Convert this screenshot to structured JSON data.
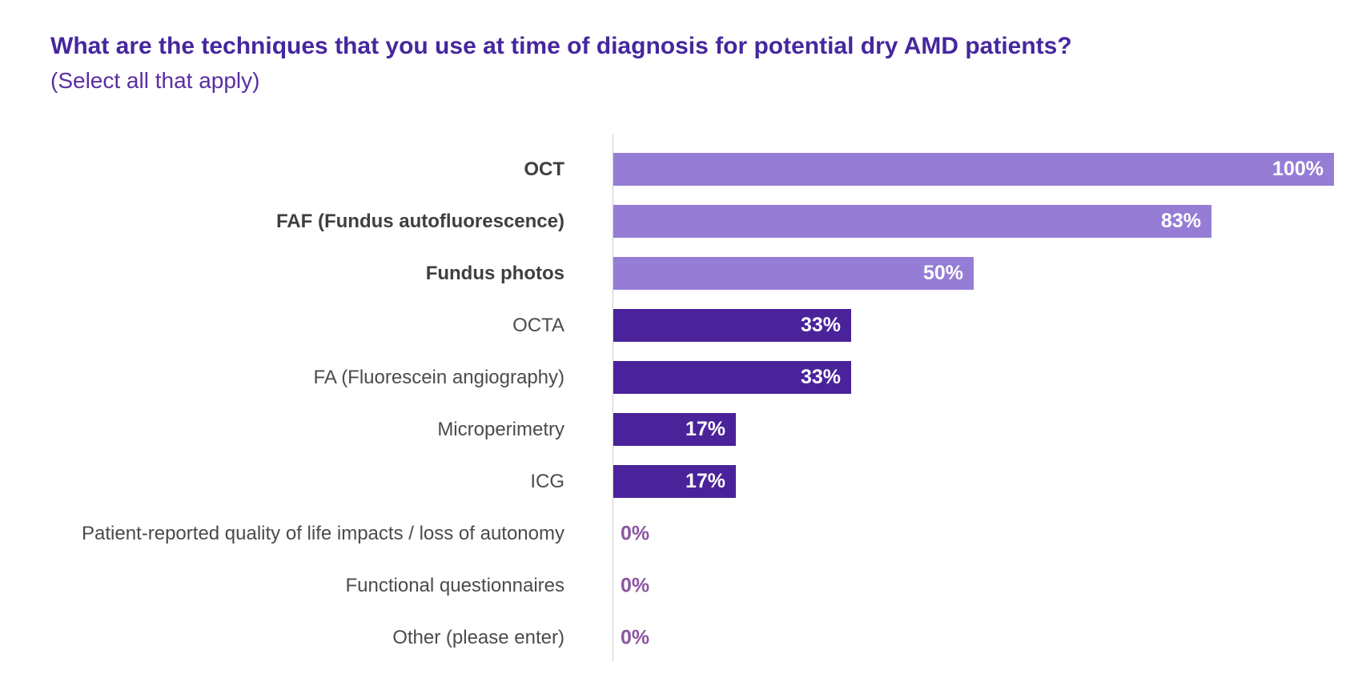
{
  "title": "What are the techniques that you use at time of diagnosis for potential dry AMD patients?",
  "subtitle": "(Select all that apply)",
  "colors": {
    "title": "#46279e",
    "subtitle": "#5a2ea2",
    "bar_light": "#957dd6",
    "bar_dark": "#4a239b",
    "value_label_on_bar": "#ffffff",
    "value_label_zero": "#8c55a0",
    "category_label": "#4b4b4b",
    "category_label_bold": "#3f3f3f",
    "axis_line": "#cccccc",
    "background": "#ffffff"
  },
  "chart_data": {
    "type": "bar",
    "orientation": "horizontal",
    "title": "What are the techniques that you use at time of diagnosis for potential dry AMD patients?",
    "subtitle": "(Select all that apply)",
    "xlabel": "",
    "ylabel": "",
    "xlim": [
      0,
      100
    ],
    "grid": false,
    "legend": false,
    "categories": [
      "OCT",
      "FAF (Fundus autofluorescence)",
      "Fundus photos",
      "OCTA",
      "FA (Fluorescein angiography)",
      "Microperimetry",
      "ICG",
      "Patient-reported quality of life impacts / loss of autonomy",
      "Functional questionnaires",
      "Other (please enter)"
    ],
    "values": [
      100,
      83,
      50,
      33,
      33,
      17,
      17,
      0,
      0,
      0
    ],
    "value_labels": [
      "100%",
      "83%",
      "50%",
      "33%",
      "33%",
      "17%",
      "17%",
      "0%",
      "0%",
      "0%"
    ],
    "bar_styles": [
      "light",
      "light",
      "light",
      "dark",
      "dark",
      "dark",
      "dark",
      "none",
      "none",
      "none"
    ],
    "category_bold": [
      true,
      true,
      true,
      false,
      false,
      false,
      false,
      false,
      false,
      false
    ]
  }
}
